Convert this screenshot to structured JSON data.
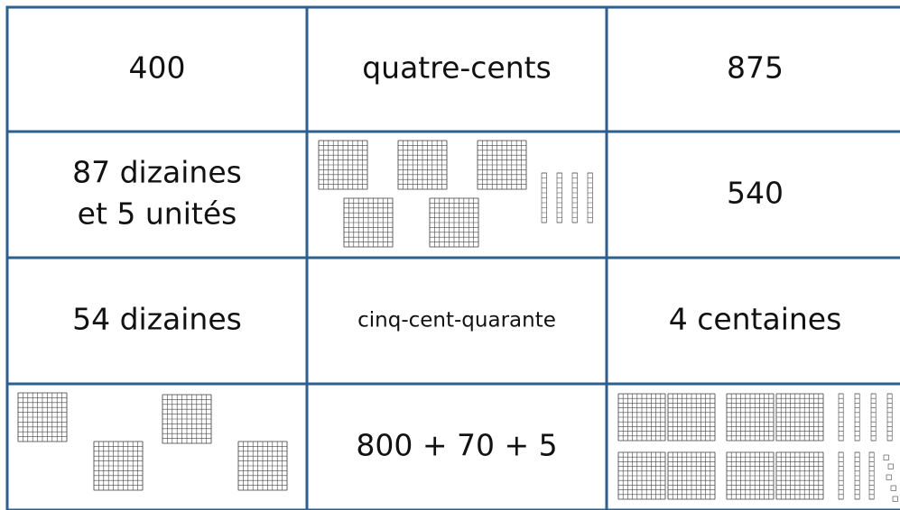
{
  "table": {
    "rows": [
      [
        "400",
        "quatre-cents",
        "875"
      ],
      [
        [
          "87 dizaines",
          "et 5 unités"
        ],
        null,
        "540"
      ],
      [
        "54 dizaines",
        "cinq-cent-quarante",
        "4 centaines"
      ],
      [
        null,
        "800 + 70 + 5",
        null
      ]
    ]
  }
}
